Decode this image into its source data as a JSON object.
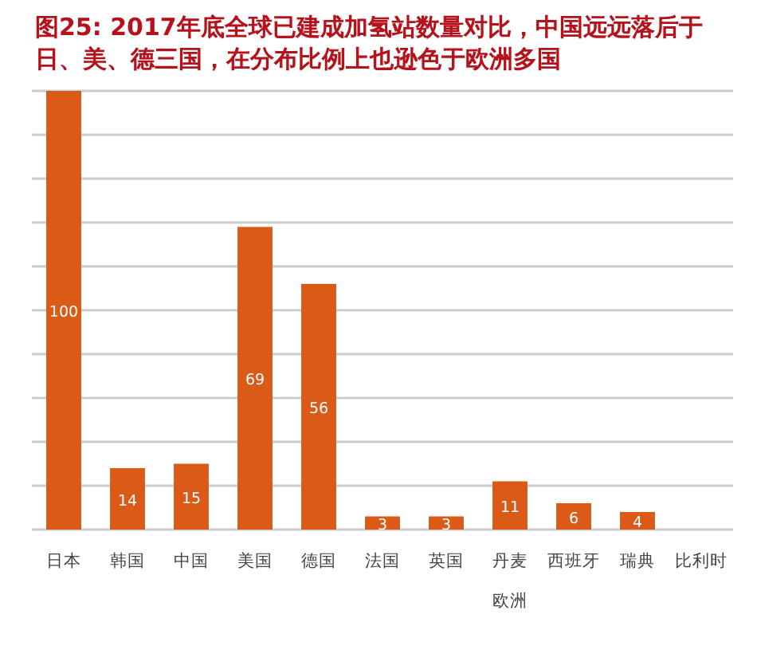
{
  "chart_data": {
    "type": "bar",
    "title": "图25: 2017年底全球已建成加氢站数量对比，中国远远落后于日、美、德三国，在分布比例上也逊色于欧洲多国",
    "categories": [
      "日本",
      "韩国",
      "中国",
      "美国",
      "德国",
      "法国",
      "英国",
      "丹麦",
      "西班牙",
      "瑞典",
      "比利时"
    ],
    "values": [
      100,
      14,
      15,
      69,
      56,
      3,
      3,
      11,
      6,
      4,
      null
    ],
    "color": "#d95b17",
    "data_labels": true,
    "ylim": [
      0,
      100
    ],
    "yticks": [
      {
        "value": 0,
        "label": null
      },
      {
        "value": 10,
        "label": null
      },
      {
        "value": 20,
        "label": null
      },
      {
        "value": 30,
        "label": null
      },
      {
        "value": 40,
        "label": null
      },
      {
        "value": 50,
        "label": null
      },
      {
        "value": 60,
        "label": null
      },
      {
        "value": 70,
        "label": null
      },
      {
        "value": 80,
        "label": null
      },
      {
        "value": 90,
        "label": null
      },
      {
        "value": 100,
        "label": null
      }
    ],
    "grid": "y",
    "annotations": [
      "欧洲"
    ]
  }
}
